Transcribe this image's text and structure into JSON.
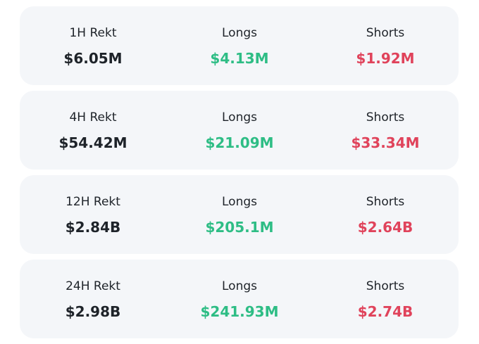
{
  "cards": [
    {
      "label": "1H Rekt",
      "total": "$6.05M",
      "longs_label": "Longs",
      "longs": "$4.13M",
      "shorts_label": "Shorts",
      "shorts": "$1.92M"
    },
    {
      "label": "4H Rekt",
      "total": "$54.42M",
      "longs_label": "Longs",
      "longs": "$21.09M",
      "shorts_label": "Shorts",
      "shorts": "$33.34M"
    },
    {
      "label": "12H Rekt",
      "total": "$2.84B",
      "longs_label": "Longs",
      "longs": "$205.1M",
      "shorts_label": "Shorts",
      "shorts": "$2.64B"
    },
    {
      "label": "24H Rekt",
      "total": "$2.98B",
      "longs_label": "Longs",
      "longs": "$241.93M",
      "shorts_label": "Shorts",
      "shorts": "$2.74B"
    }
  ]
}
